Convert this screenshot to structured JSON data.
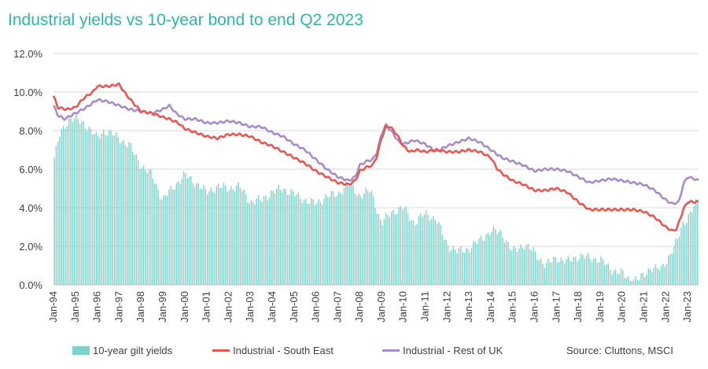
{
  "title": "Industrial yields vs 10-year bond to end Q2 2023",
  "source": "Source: Cluttons, MSCI",
  "colors": {
    "gilt": "#7fd3c9",
    "south_east": "#e8574f",
    "rest_uk": "#a98bc9",
    "title": "#2bb7b0",
    "grid": "#d9d9d9"
  },
  "chart_data": {
    "type": "bar+line",
    "title": "Industrial yields vs 10-year bond to end Q2 2023",
    "ylim": [
      0,
      12
    ],
    "y_ticks": [
      "0.0%",
      "2.0%",
      "4.0%",
      "6.0%",
      "8.0%",
      "10.0%",
      "12.0%"
    ],
    "x_ticks": [
      "Jan-94",
      "Jan-95",
      "Jan-96",
      "Jan-97",
      "Jan-98",
      "Jan-99",
      "Jan-00",
      "Jan-01",
      "Jan-02",
      "Jan-03",
      "Jan-04",
      "Jan-05",
      "Jan-06",
      "Jan-07",
      "Jan-08",
      "Jan-09",
      "Jan-10",
      "Jan-11",
      "Jan-12",
      "Jan-13",
      "Jan-14",
      "Jan-15",
      "Jan-16",
      "Jan-17",
      "Jan-18",
      "Jan-19",
      "Jan-20",
      "Jan-21",
      "Jan-22",
      "Jan-23"
    ],
    "x_range": [
      1994.0,
      2023.5
    ],
    "grid": "horizontal",
    "legend": "bottom",
    "series": [
      {
        "name": "10-year gilt yields",
        "kind": "bar",
        "resolution": "monthly",
        "anchors": [
          [
            1994.0,
            6.4
          ],
          [
            1994.3,
            7.8
          ],
          [
            1994.7,
            8.6
          ],
          [
            1995.0,
            8.6
          ],
          [
            1995.5,
            8.3
          ],
          [
            1996.0,
            7.6
          ],
          [
            1996.3,
            8.0
          ],
          [
            1996.7,
            7.8
          ],
          [
            1997.0,
            7.6
          ],
          [
            1997.5,
            7.2
          ],
          [
            1998.0,
            6.2
          ],
          [
            1998.5,
            5.7
          ],
          [
            1999.0,
            4.4
          ],
          [
            1999.5,
            5.1
          ],
          [
            2000.0,
            5.7
          ],
          [
            2000.5,
            5.3
          ],
          [
            2001.0,
            4.8
          ],
          [
            2001.5,
            5.1
          ],
          [
            2002.0,
            5.0
          ],
          [
            2002.5,
            5.1
          ],
          [
            2003.0,
            4.3
          ],
          [
            2003.5,
            4.4
          ],
          [
            2004.0,
            4.8
          ],
          [
            2004.5,
            5.0
          ],
          [
            2005.0,
            4.7
          ],
          [
            2005.5,
            4.4
          ],
          [
            2006.0,
            4.2
          ],
          [
            2006.5,
            4.6
          ],
          [
            2007.0,
            4.7
          ],
          [
            2007.5,
            5.3
          ],
          [
            2008.0,
            4.6
          ],
          [
            2008.5,
            4.9
          ],
          [
            2009.0,
            3.2
          ],
          [
            2009.5,
            3.8
          ],
          [
            2010.0,
            4.0
          ],
          [
            2010.5,
            3.2
          ],
          [
            2011.0,
            3.7
          ],
          [
            2011.5,
            3.4
          ],
          [
            2012.0,
            2.1
          ],
          [
            2012.5,
            1.7
          ],
          [
            2013.0,
            1.9
          ],
          [
            2013.5,
            2.3
          ],
          [
            2014.0,
            2.8
          ],
          [
            2014.5,
            2.7
          ],
          [
            2015.0,
            1.7
          ],
          [
            2015.5,
            2.1
          ],
          [
            2016.0,
            1.7
          ],
          [
            2016.5,
            1.0
          ],
          [
            2017.0,
            1.4
          ],
          [
            2017.5,
            1.2
          ],
          [
            2018.0,
            1.5
          ],
          [
            2018.5,
            1.4
          ],
          [
            2019.0,
            1.3
          ],
          [
            2019.5,
            0.8
          ],
          [
            2020.0,
            0.6
          ],
          [
            2020.3,
            0.3
          ],
          [
            2020.8,
            0.3
          ],
          [
            2021.0,
            0.5
          ],
          [
            2021.3,
            0.9
          ],
          [
            2021.8,
            0.8
          ],
          [
            2022.0,
            1.2
          ],
          [
            2022.5,
            2.2
          ],
          [
            2022.8,
            3.2
          ],
          [
            2023.0,
            3.5
          ],
          [
            2023.5,
            4.4
          ]
        ]
      },
      {
        "name": "Industrial - South East",
        "kind": "line",
        "points": [
          [
            1994.0,
            9.8
          ],
          [
            1994.2,
            9.2
          ],
          [
            1994.6,
            9.1
          ],
          [
            1995.0,
            9.2
          ],
          [
            1995.4,
            9.7
          ],
          [
            1995.8,
            10.0
          ],
          [
            1996.0,
            10.3
          ],
          [
            1996.5,
            10.3
          ],
          [
            1997.0,
            10.4
          ],
          [
            1997.3,
            9.9
          ],
          [
            1997.6,
            9.5
          ],
          [
            1998.0,
            9.0
          ],
          [
            1998.5,
            8.9
          ],
          [
            1999.0,
            8.7
          ],
          [
            1999.3,
            8.6
          ],
          [
            1999.7,
            8.4
          ],
          [
            2000.0,
            8.1
          ],
          [
            2000.5,
            7.9
          ],
          [
            2001.0,
            7.7
          ],
          [
            2001.5,
            7.6
          ],
          [
            2002.0,
            7.8
          ],
          [
            2002.5,
            7.8
          ],
          [
            2003.0,
            7.7
          ],
          [
            2003.5,
            7.4
          ],
          [
            2004.0,
            7.2
          ],
          [
            2004.5,
            6.9
          ],
          [
            2005.0,
            6.6
          ],
          [
            2005.5,
            6.3
          ],
          [
            2006.0,
            5.9
          ],
          [
            2006.5,
            5.6
          ],
          [
            2007.0,
            5.3
          ],
          [
            2007.5,
            5.2
          ],
          [
            2007.8,
            5.4
          ],
          [
            2008.0,
            5.9
          ],
          [
            2008.3,
            6.1
          ],
          [
            2008.6,
            6.2
          ],
          [
            2008.8,
            6.7
          ],
          [
            2009.0,
            7.6
          ],
          [
            2009.2,
            8.2
          ],
          [
            2009.4,
            8.2
          ],
          [
            2009.7,
            7.8
          ],
          [
            2010.0,
            7.2
          ],
          [
            2010.3,
            6.9
          ],
          [
            2010.6,
            7.0
          ],
          [
            2011.0,
            6.9
          ],
          [
            2011.5,
            7.0
          ],
          [
            2012.0,
            6.9
          ],
          [
            2012.5,
            6.9
          ],
          [
            2013.0,
            7.0
          ],
          [
            2013.5,
            6.9
          ],
          [
            2014.0,
            6.6
          ],
          [
            2014.3,
            6.0
          ],
          [
            2014.6,
            5.7
          ],
          [
            2015.0,
            5.4
          ],
          [
            2015.5,
            5.2
          ],
          [
            2016.0,
            4.9
          ],
          [
            2016.5,
            4.9
          ],
          [
            2017.0,
            5.0
          ],
          [
            2017.5,
            4.8
          ],
          [
            2018.0,
            4.3
          ],
          [
            2018.5,
            3.9
          ],
          [
            2019.0,
            3.9
          ],
          [
            2019.5,
            3.9
          ],
          [
            2020.0,
            3.9
          ],
          [
            2020.5,
            3.9
          ],
          [
            2021.0,
            3.8
          ],
          [
            2021.5,
            3.5
          ],
          [
            2022.0,
            3.0
          ],
          [
            2022.3,
            2.8
          ],
          [
            2022.5,
            2.9
          ],
          [
            2022.8,
            3.9
          ],
          [
            2023.0,
            4.3
          ],
          [
            2023.3,
            4.3
          ],
          [
            2023.5,
            4.3
          ]
        ]
      },
      {
        "name": "Industrial - Rest of UK",
        "kind": "line",
        "points": [
          [
            1994.0,
            9.3
          ],
          [
            1994.2,
            8.8
          ],
          [
            1994.5,
            8.6
          ],
          [
            1995.0,
            8.9
          ],
          [
            1995.5,
            9.2
          ],
          [
            1996.0,
            9.6
          ],
          [
            1996.5,
            9.5
          ],
          [
            1997.0,
            9.3
          ],
          [
            1997.5,
            9.1
          ],
          [
            1998.0,
            9.0
          ],
          [
            1998.5,
            8.9
          ],
          [
            1999.0,
            9.1
          ],
          [
            1999.3,
            9.3
          ],
          [
            1999.6,
            8.9
          ],
          [
            2000.0,
            8.6
          ],
          [
            2000.5,
            8.6
          ],
          [
            2001.0,
            8.4
          ],
          [
            2001.5,
            8.4
          ],
          [
            2002.0,
            8.5
          ],
          [
            2002.5,
            8.4
          ],
          [
            2003.0,
            8.2
          ],
          [
            2003.5,
            8.2
          ],
          [
            2004.0,
            7.9
          ],
          [
            2004.5,
            7.7
          ],
          [
            2005.0,
            7.3
          ],
          [
            2005.5,
            7.0
          ],
          [
            2006.0,
            6.5
          ],
          [
            2006.5,
            6.0
          ],
          [
            2007.0,
            5.6
          ],
          [
            2007.5,
            5.4
          ],
          [
            2007.8,
            5.6
          ],
          [
            2008.0,
            6.2
          ],
          [
            2008.3,
            6.4
          ],
          [
            2008.6,
            6.5
          ],
          [
            2008.8,
            6.9
          ],
          [
            2009.0,
            7.8
          ],
          [
            2009.2,
            8.3
          ],
          [
            2009.5,
            7.9
          ],
          [
            2009.8,
            7.4
          ],
          [
            2010.0,
            7.3
          ],
          [
            2010.5,
            7.5
          ],
          [
            2011.0,
            7.3
          ],
          [
            2011.5,
            6.9
          ],
          [
            2012.0,
            7.2
          ],
          [
            2012.5,
            7.4
          ],
          [
            2013.0,
            7.6
          ],
          [
            2013.5,
            7.4
          ],
          [
            2014.0,
            7.0
          ],
          [
            2014.5,
            6.6
          ],
          [
            2015.0,
            6.4
          ],
          [
            2015.5,
            6.2
          ],
          [
            2016.0,
            5.9
          ],
          [
            2016.5,
            6.0
          ],
          [
            2017.0,
            6.0
          ],
          [
            2017.5,
            5.9
          ],
          [
            2018.0,
            5.6
          ],
          [
            2018.5,
            5.3
          ],
          [
            2019.0,
            5.4
          ],
          [
            2019.5,
            5.5
          ],
          [
            2020.0,
            5.4
          ],
          [
            2020.5,
            5.3
          ],
          [
            2021.0,
            5.2
          ],
          [
            2021.5,
            4.9
          ],
          [
            2022.0,
            4.4
          ],
          [
            2022.3,
            4.2
          ],
          [
            2022.6,
            4.3
          ],
          [
            2022.8,
            5.2
          ],
          [
            2023.0,
            5.6
          ],
          [
            2023.3,
            5.5
          ],
          [
            2023.5,
            5.4
          ]
        ]
      }
    ]
  },
  "legend": {
    "gilt": "10-year gilt yields",
    "south_east": "Industrial - South East",
    "rest_uk": "Industrial - Rest of UK"
  }
}
